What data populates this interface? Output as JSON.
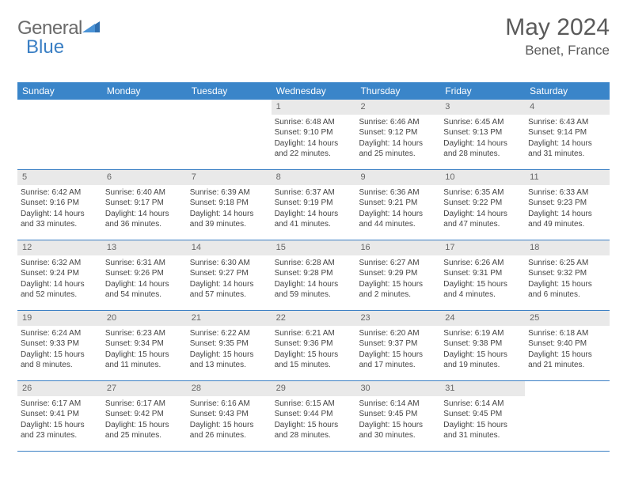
{
  "brand": {
    "part1": "General",
    "part2": "Blue"
  },
  "title": "May 2024",
  "location": "Benet, France",
  "colors": {
    "header_bg": "#3a85c9",
    "header_text": "#ffffff",
    "daynum_bg": "#e9e9e9",
    "daynum_text": "#666666",
    "border": "#3a7fc4",
    "text": "#444444",
    "title_text": "#5a5a5a",
    "logo_gray": "#6a6a6a",
    "logo_blue": "#3a7fc4"
  },
  "days": [
    "Sunday",
    "Monday",
    "Tuesday",
    "Wednesday",
    "Thursday",
    "Friday",
    "Saturday"
  ],
  "weeks": [
    [
      null,
      null,
      null,
      {
        "n": "1",
        "sr": "6:48 AM",
        "ss": "9:10 PM",
        "dl": "14 hours and 22 minutes."
      },
      {
        "n": "2",
        "sr": "6:46 AM",
        "ss": "9:12 PM",
        "dl": "14 hours and 25 minutes."
      },
      {
        "n": "3",
        "sr": "6:45 AM",
        "ss": "9:13 PM",
        "dl": "14 hours and 28 minutes."
      },
      {
        "n": "4",
        "sr": "6:43 AM",
        "ss": "9:14 PM",
        "dl": "14 hours and 31 minutes."
      }
    ],
    [
      {
        "n": "5",
        "sr": "6:42 AM",
        "ss": "9:16 PM",
        "dl": "14 hours and 33 minutes."
      },
      {
        "n": "6",
        "sr": "6:40 AM",
        "ss": "9:17 PM",
        "dl": "14 hours and 36 minutes."
      },
      {
        "n": "7",
        "sr": "6:39 AM",
        "ss": "9:18 PM",
        "dl": "14 hours and 39 minutes."
      },
      {
        "n": "8",
        "sr": "6:37 AM",
        "ss": "9:19 PM",
        "dl": "14 hours and 41 minutes."
      },
      {
        "n": "9",
        "sr": "6:36 AM",
        "ss": "9:21 PM",
        "dl": "14 hours and 44 minutes."
      },
      {
        "n": "10",
        "sr": "6:35 AM",
        "ss": "9:22 PM",
        "dl": "14 hours and 47 minutes."
      },
      {
        "n": "11",
        "sr": "6:33 AM",
        "ss": "9:23 PM",
        "dl": "14 hours and 49 minutes."
      }
    ],
    [
      {
        "n": "12",
        "sr": "6:32 AM",
        "ss": "9:24 PM",
        "dl": "14 hours and 52 minutes."
      },
      {
        "n": "13",
        "sr": "6:31 AM",
        "ss": "9:26 PM",
        "dl": "14 hours and 54 minutes."
      },
      {
        "n": "14",
        "sr": "6:30 AM",
        "ss": "9:27 PM",
        "dl": "14 hours and 57 minutes."
      },
      {
        "n": "15",
        "sr": "6:28 AM",
        "ss": "9:28 PM",
        "dl": "14 hours and 59 minutes."
      },
      {
        "n": "16",
        "sr": "6:27 AM",
        "ss": "9:29 PM",
        "dl": "15 hours and 2 minutes."
      },
      {
        "n": "17",
        "sr": "6:26 AM",
        "ss": "9:31 PM",
        "dl": "15 hours and 4 minutes."
      },
      {
        "n": "18",
        "sr": "6:25 AM",
        "ss": "9:32 PM",
        "dl": "15 hours and 6 minutes."
      }
    ],
    [
      {
        "n": "19",
        "sr": "6:24 AM",
        "ss": "9:33 PM",
        "dl": "15 hours and 8 minutes."
      },
      {
        "n": "20",
        "sr": "6:23 AM",
        "ss": "9:34 PM",
        "dl": "15 hours and 11 minutes."
      },
      {
        "n": "21",
        "sr": "6:22 AM",
        "ss": "9:35 PM",
        "dl": "15 hours and 13 minutes."
      },
      {
        "n": "22",
        "sr": "6:21 AM",
        "ss": "9:36 PM",
        "dl": "15 hours and 15 minutes."
      },
      {
        "n": "23",
        "sr": "6:20 AM",
        "ss": "9:37 PM",
        "dl": "15 hours and 17 minutes."
      },
      {
        "n": "24",
        "sr": "6:19 AM",
        "ss": "9:38 PM",
        "dl": "15 hours and 19 minutes."
      },
      {
        "n": "25",
        "sr": "6:18 AM",
        "ss": "9:40 PM",
        "dl": "15 hours and 21 minutes."
      }
    ],
    [
      {
        "n": "26",
        "sr": "6:17 AM",
        "ss": "9:41 PM",
        "dl": "15 hours and 23 minutes."
      },
      {
        "n": "27",
        "sr": "6:17 AM",
        "ss": "9:42 PM",
        "dl": "15 hours and 25 minutes."
      },
      {
        "n": "28",
        "sr": "6:16 AM",
        "ss": "9:43 PM",
        "dl": "15 hours and 26 minutes."
      },
      {
        "n": "29",
        "sr": "6:15 AM",
        "ss": "9:44 PM",
        "dl": "15 hours and 28 minutes."
      },
      {
        "n": "30",
        "sr": "6:14 AM",
        "ss": "9:45 PM",
        "dl": "15 hours and 30 minutes."
      },
      {
        "n": "31",
        "sr": "6:14 AM",
        "ss": "9:45 PM",
        "dl": "15 hours and 31 minutes."
      },
      null
    ]
  ],
  "labels": {
    "sunrise": "Sunrise: ",
    "sunset": "Sunset: ",
    "daylight": "Daylight: "
  }
}
